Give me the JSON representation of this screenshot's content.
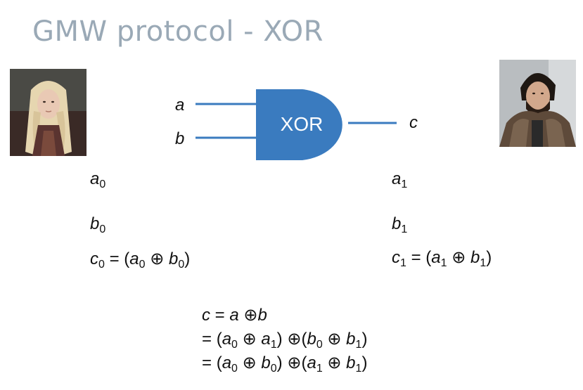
{
  "slide": {
    "title": "GMW protocol - XOR"
  },
  "gate": {
    "label": "XOR",
    "input_a": "a",
    "input_b": "b",
    "output": "c",
    "color": "#3a7bbf"
  },
  "parties": {
    "left": {
      "portrait": "woman-with-braided-blonde-hair-portrait"
    },
    "right": {
      "portrait": "bearded-man-in-fur-cloak-portrait"
    }
  },
  "shares": {
    "left": {
      "a": "a",
      "a_sub": "0",
      "b": "b",
      "b_sub": "0",
      "c": "c",
      "c_sub": "0"
    },
    "right": {
      "a": "a",
      "a_sub": "1",
      "b": "b",
      "b_sub": "1",
      "c": "c",
      "c_sub": "1"
    }
  },
  "symbols": {
    "eq": "=",
    "oplus": "⊕",
    "lparen": "(",
    "rparen": ")"
  }
}
